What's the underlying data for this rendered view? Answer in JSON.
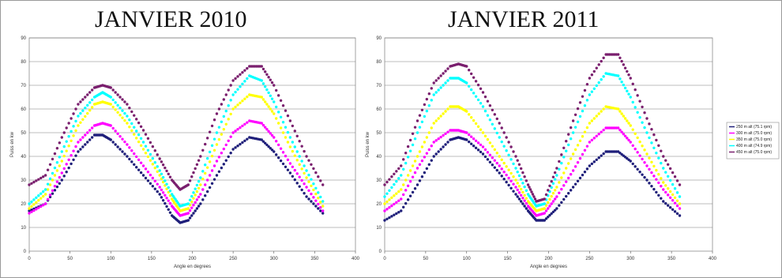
{
  "chart_data": [
    {
      "type": "scatter",
      "title": "JANVIER 2010",
      "xlabel": "Angle en degrees",
      "ylabel": "Puiss en kw",
      "xlim": [
        0,
        400
      ],
      "ylim": [
        0,
        90
      ],
      "xticks": [
        0,
        50,
        100,
        150,
        200,
        250,
        300,
        350,
        400
      ],
      "yticks": [
        0,
        10,
        20,
        30,
        40,
        50,
        60,
        70,
        80,
        90
      ],
      "grid": "horizontal",
      "series": [
        {
          "color": "#1f1f7a",
          "points": [
            [
              0,
              17
            ],
            [
              20,
              20
            ],
            [
              40,
              30
            ],
            [
              60,
              42
            ],
            [
              80,
              49
            ],
            [
              90,
              49
            ],
            [
              100,
              47
            ],
            [
              120,
              40
            ],
            [
              140,
              32
            ],
            [
              160,
              24
            ],
            [
              175,
              15
            ],
            [
              185,
              12
            ],
            [
              195,
              13
            ],
            [
              210,
              20
            ],
            [
              230,
              32
            ],
            [
              250,
              43
            ],
            [
              270,
              48
            ],
            [
              285,
              47
            ],
            [
              300,
              42
            ],
            [
              320,
              33
            ],
            [
              340,
              23
            ],
            [
              360,
              16
            ]
          ]
        },
        {
          "color": "#ff00ff",
          "points": [
            [
              0,
              16
            ],
            [
              20,
              20
            ],
            [
              40,
              33
            ],
            [
              60,
              46
            ],
            [
              80,
              53
            ],
            [
              90,
              54
            ],
            [
              100,
              53
            ],
            [
              120,
              45
            ],
            [
              140,
              36
            ],
            [
              160,
              27
            ],
            [
              175,
              19
            ],
            [
              185,
              15
            ],
            [
              195,
              16
            ],
            [
              210,
              24
            ],
            [
              230,
              38
            ],
            [
              250,
              50
            ],
            [
              270,
              55
            ],
            [
              285,
              54
            ],
            [
              300,
              48
            ],
            [
              320,
              37
            ],
            [
              340,
              27
            ],
            [
              360,
              17
            ]
          ]
        },
        {
          "color": "#ffff00",
          "points": [
            [
              0,
              18
            ],
            [
              20,
              24
            ],
            [
              40,
              38
            ],
            [
              60,
              53
            ],
            [
              80,
              62
            ],
            [
              90,
              63
            ],
            [
              100,
              62
            ],
            [
              120,
              54
            ],
            [
              140,
              43
            ],
            [
              160,
              32
            ],
            [
              175,
              22
            ],
            [
              185,
              17
            ],
            [
              195,
              18
            ],
            [
              210,
              28
            ],
            [
              230,
              45
            ],
            [
              250,
              60
            ],
            [
              270,
              66
            ],
            [
              285,
              65
            ],
            [
              300,
              58
            ],
            [
              320,
              44
            ],
            [
              340,
              31
            ],
            [
              360,
              19
            ]
          ]
        },
        {
          "color": "#00ffff",
          "points": [
            [
              0,
              20
            ],
            [
              20,
              26
            ],
            [
              40,
              42
            ],
            [
              60,
              57
            ],
            [
              80,
              65
            ],
            [
              90,
              67
            ],
            [
              100,
              65
            ],
            [
              120,
              57
            ],
            [
              140,
              46
            ],
            [
              160,
              34
            ],
            [
              175,
              24
            ],
            [
              185,
              19
            ],
            [
              195,
              20
            ],
            [
              210,
              31
            ],
            [
              230,
              50
            ],
            [
              250,
              66
            ],
            [
              270,
              74
            ],
            [
              285,
              72
            ],
            [
              300,
              63
            ],
            [
              320,
              48
            ],
            [
              340,
              34
            ],
            [
              360,
              21
            ]
          ]
        },
        {
          "color": "#7a1f6e",
          "points": [
            [
              0,
              28
            ],
            [
              20,
              32
            ],
            [
              40,
              48
            ],
            [
              60,
              62
            ],
            [
              80,
              69
            ],
            [
              90,
              70
            ],
            [
              100,
              69
            ],
            [
              120,
              62
            ],
            [
              140,
              51
            ],
            [
              160,
              39
            ],
            [
              175,
              30
            ],
            [
              185,
              26
            ],
            [
              195,
              28
            ],
            [
              210,
              40
            ],
            [
              230,
              58
            ],
            [
              250,
              72
            ],
            [
              270,
              78
            ],
            [
              285,
              78
            ],
            [
              300,
              70
            ],
            [
              320,
              55
            ],
            [
              340,
              40
            ],
            [
              360,
              28
            ]
          ]
        }
      ]
    },
    {
      "type": "scatter",
      "title": "JANVIER 2011",
      "xlabel": "Angle en degrees",
      "ylabel": "Puiss en kw",
      "xlim": [
        0,
        400
      ],
      "ylim": [
        0,
        90
      ],
      "xticks": [
        0,
        50,
        100,
        150,
        200,
        250,
        300,
        350,
        400
      ],
      "yticks": [
        0,
        10,
        20,
        30,
        40,
        50,
        60,
        70,
        80,
        90
      ],
      "grid": "horizontal",
      "legend": "right",
      "series": [
        {
          "name": "250 m alt (75.1 rpm)",
          "color": "#1f1f7a",
          "points": [
            [
              0,
              13
            ],
            [
              20,
              17
            ],
            [
              40,
              28
            ],
            [
              60,
              40
            ],
            [
              80,
              47
            ],
            [
              90,
              48
            ],
            [
              100,
              47
            ],
            [
              120,
              41
            ],
            [
              140,
              33
            ],
            [
              160,
              24
            ],
            [
              175,
              17
            ],
            [
              185,
              13
            ],
            [
              195,
              13
            ],
            [
              210,
              18
            ],
            [
              230,
              27
            ],
            [
              250,
              36
            ],
            [
              270,
              42
            ],
            [
              285,
              42
            ],
            [
              300,
              38
            ],
            [
              320,
              30
            ],
            [
              340,
              21
            ],
            [
              360,
              15
            ]
          ]
        },
        {
          "name": "300 m alt (75.0 rpm)",
          "color": "#ff00ff",
          "points": [
            [
              0,
              17
            ],
            [
              20,
              22
            ],
            [
              40,
              35
            ],
            [
              60,
              46
            ],
            [
              80,
              51
            ],
            [
              90,
              51
            ],
            [
              100,
              50
            ],
            [
              120,
              44
            ],
            [
              140,
              36
            ],
            [
              160,
              27
            ],
            [
              175,
              19
            ],
            [
              185,
              15
            ],
            [
              195,
              16
            ],
            [
              210,
              23
            ],
            [
              230,
              34
            ],
            [
              250,
              46
            ],
            [
              270,
              52
            ],
            [
              285,
              52
            ],
            [
              300,
              46
            ],
            [
              320,
              36
            ],
            [
              340,
              26
            ],
            [
              360,
              18
            ]
          ]
        },
        {
          "name": "350 m alt (75.0 rpm)",
          "color": "#ffff00",
          "points": [
            [
              0,
              20
            ],
            [
              20,
              26
            ],
            [
              40,
              40
            ],
            [
              60,
              54
            ],
            [
              80,
              61
            ],
            [
              90,
              61
            ],
            [
              100,
              59
            ],
            [
              120,
              50
            ],
            [
              140,
              40
            ],
            [
              160,
              30
            ],
            [
              175,
              21
            ],
            [
              185,
              17
            ],
            [
              195,
              18
            ],
            [
              210,
              27
            ],
            [
              230,
              41
            ],
            [
              250,
              54
            ],
            [
              270,
              61
            ],
            [
              285,
              60
            ],
            [
              300,
              53
            ],
            [
              320,
              41
            ],
            [
              340,
              29
            ],
            [
              360,
              20
            ]
          ]
        },
        {
          "name": "400 m alt (74.9 rpm)",
          "color": "#00ffff",
          "points": [
            [
              0,
              23
            ],
            [
              20,
              32
            ],
            [
              40,
              50
            ],
            [
              60,
              66
            ],
            [
              80,
              73
            ],
            [
              90,
              73
            ],
            [
              100,
              71
            ],
            [
              120,
              61
            ],
            [
              140,
              48
            ],
            [
              160,
              35
            ],
            [
              175,
              24
            ],
            [
              185,
              19
            ],
            [
              195,
              20
            ],
            [
              210,
              32
            ],
            [
              230,
              50
            ],
            [
              250,
              66
            ],
            [
              270,
              75
            ],
            [
              285,
              74
            ],
            [
              300,
              65
            ],
            [
              320,
              50
            ],
            [
              340,
              35
            ],
            [
              360,
              23
            ]
          ]
        },
        {
          "name": "450 m alt (75.0 rpm)",
          "color": "#7a1f6e",
          "points": [
            [
              0,
              28
            ],
            [
              20,
              36
            ],
            [
              40,
              55
            ],
            [
              60,
              71
            ],
            [
              80,
              78
            ],
            [
              90,
              79
            ],
            [
              100,
              78
            ],
            [
              120,
              67
            ],
            [
              140,
              54
            ],
            [
              160,
              40
            ],
            [
              175,
              28
            ],
            [
              185,
              21
            ],
            [
              195,
              22
            ],
            [
              210,
              35
            ],
            [
              230,
              55
            ],
            [
              250,
              73
            ],
            [
              270,
              83
            ],
            [
              285,
              83
            ],
            [
              300,
              73
            ],
            [
              320,
              56
            ],
            [
              340,
              40
            ],
            [
              360,
              28
            ]
          ]
        }
      ]
    }
  ]
}
